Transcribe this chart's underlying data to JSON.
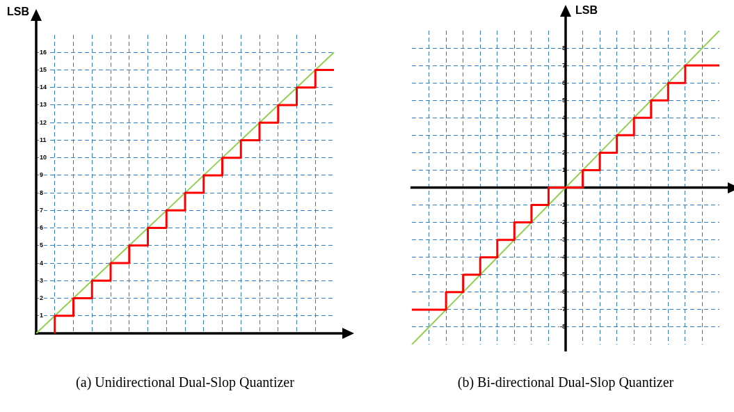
{
  "chart_data": [
    {
      "type": "line",
      "title": "(a) Unidirectional Dual-Slop Quantizer",
      "ylabel": "LSB",
      "categories": [
        null,
        null,
        null,
        null,
        null,
        null,
        null,
        null,
        null,
        null,
        null,
        null,
        null,
        null,
        null,
        null,
        null
      ],
      "ylim": [
        0,
        17
      ],
      "yticks": [
        1,
        2,
        3,
        4,
        5,
        6,
        7,
        8,
        9,
        10,
        11,
        12,
        13,
        14,
        15,
        16
      ],
      "grid": true,
      "tick_labels": "y",
      "marker": "none",
      "series": [
        {
          "type": "line",
          "color": "#92d050",
          "values": [
            0,
            1,
            2,
            3,
            4,
            5,
            6,
            7,
            8,
            9,
            10,
            11,
            12,
            13,
            14,
            15,
            16
          ]
        },
        {
          "type": "step",
          "color": "#ff0000",
          "values": [
            null,
            0,
            1,
            2,
            3,
            4,
            5,
            6,
            7,
            8,
            9,
            10,
            11,
            12,
            13,
            14,
            15
          ]
        }
      ]
    },
    {
      "type": "line",
      "title": "(b) Bi-directional Dual-Slop Quantizer",
      "ylabel": "LSB",
      "categories": [
        null,
        null,
        null,
        null,
        null,
        null,
        null,
        null,
        null,
        null,
        null,
        null,
        null,
        null,
        null,
        null,
        null,
        null,
        null
      ],
      "ylim": [
        -9,
        9
      ],
      "yticks": [
        -8,
        -7,
        -6,
        -5,
        -4,
        -3,
        -2,
        -1,
        {
          "value": 0,
          "label": null
        },
        1,
        2,
        3,
        4,
        5,
        6,
        7,
        8
      ],
      "grid": true,
      "tick_labels": "y",
      "marker": "none",
      "series": [
        {
          "type": "line",
          "color": "#92d050",
          "values": [
            -9,
            -8,
            -7,
            -6,
            -5,
            -4,
            -3,
            -2,
            -1,
            0,
            1,
            2,
            3,
            4,
            5,
            6,
            7,
            8,
            9
          ]
        },
        {
          "type": "step",
          "color": "#ff0000",
          "values": [
            -7,
            -7,
            -7,
            -6,
            -5,
            -4,
            -3,
            -2,
            -1,
            0,
            0,
            1,
            2,
            3,
            4,
            5,
            6,
            7,
            7
          ]
        }
      ]
    }
  ]
}
